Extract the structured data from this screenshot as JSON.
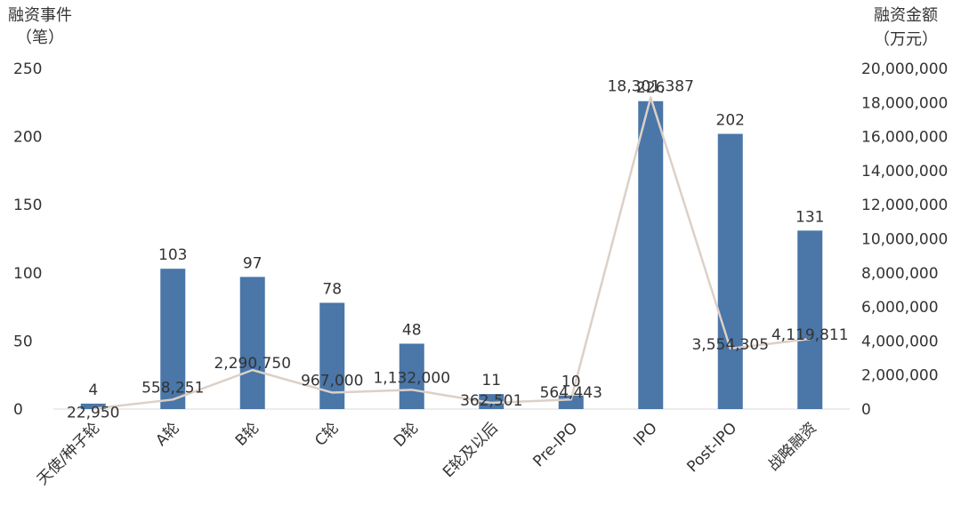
{
  "chart_data": {
    "type": "bar",
    "categories": [
      "天使/种子轮",
      "A轮",
      "B轮",
      "C轮",
      "D轮",
      "E轮及以后",
      "Pre-IPO",
      "IPO",
      "Post-IPO",
      "战略融资"
    ],
    "series": [
      {
        "chart_type": "bar",
        "axis": "left",
        "values": [
          4,
          103,
          97,
          78,
          48,
          11,
          10,
          226,
          202,
          131
        ],
        "labels": [
          "4",
          "103",
          "97",
          "78",
          "48",
          "11",
          "10",
          "226",
          "202",
          "131"
        ],
        "color": "#4a76a8"
      },
      {
        "chart_type": "line",
        "axis": "right",
        "values": [
          22950,
          558251,
          2290750,
          967000,
          1132000,
          362501,
          564443,
          18301387,
          3554305,
          4119811
        ],
        "labels": [
          "22,950",
          "558,251",
          "2,290,750",
          "967,000",
          "1,132,000",
          "362,501",
          "564,443",
          "18,301,387",
          "3,554,305",
          "4,119,811"
        ],
        "color": "#dcd0c7"
      }
    ],
    "y_left": {
      "label_line1": "融资事件",
      "label_line2": "（笔）",
      "range": [
        0,
        250
      ],
      "ticks": [
        "0",
        "50",
        "100",
        "150",
        "200",
        "250"
      ]
    },
    "y_right": {
      "label_line1": "融资金额",
      "label_line2": "（万元）",
      "range": [
        0,
        20000000
      ],
      "ticks": [
        "0",
        "2,000,000",
        "4,000,000",
        "6,000,000",
        "8,000,000",
        "10,000,000",
        "12,000,000",
        "14,000,000",
        "16,000,000",
        "18,000,000",
        "20,000,000"
      ]
    },
    "grid": false,
    "legend": "none"
  }
}
